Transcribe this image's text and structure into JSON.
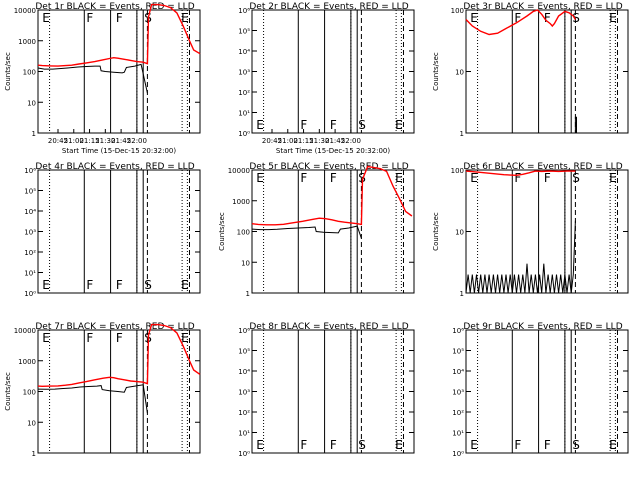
{
  "chart_data": [
    {
      "type": "line",
      "panel": "det-1r",
      "title": "Det 1r BLACK = Events, RED = LLD",
      "ylabel": "Counts/sec",
      "xlabel": "Start Time (15-Dec-15 20:32:00)",
      "scale": "log",
      "ylim": [
        1,
        10000
      ],
      "yticks": [
        "1",
        "10",
        "100",
        "1000",
        "10000"
      ],
      "xticks": [
        "20:45",
        "21:00",
        "21:15",
        "21:30",
        "21:45",
        "22:00"
      ],
      "markers": [
        "E",
        "F",
        "F",
        "S",
        "E"
      ],
      "series": [
        {
          "name": "LLD",
          "color": "#ff0000",
          "x": [
            36,
            40,
            48,
            55,
            62,
            68,
            75,
            82,
            90,
            98,
            104,
            108,
            112,
            118,
            124,
            130,
            136,
            140,
            141,
            144,
            150,
            156,
            162,
            168,
            174,
            180,
            184,
            190
          ],
          "y": [
            160,
            155,
            152,
            150,
            155,
            160,
            175,
            190,
            210,
            240,
            265,
            280,
            270,
            250,
            230,
            210,
            200,
            180,
            6000,
            15000,
            15000,
            14000,
            12000,
            8000,
            3000,
            1000,
            500,
            380
          ]
        },
        {
          "name": "Events",
          "color": "#000000",
          "x": [
            36,
            42,
            50,
            58,
            64,
            74,
            82,
            90,
            95,
            96,
            100,
            108,
            116,
            118,
            120,
            128,
            134,
            140
          ],
          "y": [
            130,
            120,
            120,
            125,
            130,
            140,
            145,
            150,
            150,
            105,
            100,
            95,
            90,
            95,
            135,
            150,
            170,
            20
          ]
        }
      ]
    },
    {
      "type": "line",
      "panel": "det-2r",
      "title": "Det 2r BLACK = Events, RED = LLD",
      "ylabel": "",
      "xlabel": "Start Time (15-Dec-15 20:32:00)",
      "scale": "log",
      "ylim": [
        1,
        1000000
      ],
      "yticks": [
        "10⁰",
        "10¹",
        "10²",
        "10³",
        "10⁴",
        "10⁵",
        "10⁶"
      ],
      "xticks": [
        "20:45",
        "21:00",
        "21:15",
        "21:30",
        "21:45",
        "22:00"
      ],
      "markers": [
        "E",
        "F",
        "F",
        "S",
        "E"
      ],
      "series": []
    },
    {
      "type": "line",
      "panel": "det-3r",
      "title": "Det 3r BLACK = Events, RED = LLD",
      "ylabel": "Counts/sec",
      "xlabel": "",
      "scale": "log",
      "ylim": [
        1,
        100
      ],
      "yticks": [
        "1",
        "10",
        "100"
      ],
      "xticks": [],
      "markers": [
        "E",
        "F",
        "F",
        "S",
        "E"
      ],
      "series": [
        {
          "name": "LLD",
          "color": "#ff0000",
          "x": [
            36,
            42,
            50,
            58,
            66,
            74,
            84,
            94,
            100,
            104,
            108,
            112,
            116,
            118,
            120,
            124,
            130,
            134,
            138,
            140
          ],
          "y": [
            70,
            55,
            45,
            40,
            42,
            50,
            62,
            80,
            95,
            100,
            85,
            68,
            60,
            55,
            60,
            80,
            95,
            90,
            80,
            70
          ]
        },
        {
          "name": "Events",
          "color": "#000000",
          "x": [
            140,
            140,
            141,
            141
          ],
          "y": [
            1,
            1.8,
            1.8,
            1
          ]
        }
      ]
    },
    {
      "type": "line",
      "panel": "det-4r",
      "title": "Det 4r BLACK = Events, RED = LLD",
      "ylabel": "",
      "xlabel": "",
      "scale": "log",
      "ylim": [
        1,
        1000000
      ],
      "yticks": [
        "10⁰",
        "10¹",
        "10²",
        "10³",
        "10⁴",
        "10⁵",
        "10⁶"
      ],
      "xticks": [],
      "markers": [
        "E",
        "F",
        "F",
        "S",
        "E"
      ],
      "series": []
    },
    {
      "type": "line",
      "panel": "det-5r",
      "title": "Det 5r BLACK = Events, RED = LLD",
      "ylabel": "Counts/sec",
      "xlabel": "",
      "scale": "log",
      "ylim": [
        1,
        10000
      ],
      "yticks": [
        "1",
        "10",
        "100",
        "1000",
        "10000"
      ],
      "xticks": [],
      "markers": [
        "E",
        "F",
        "F",
        "S",
        "E"
      ],
      "series": [
        {
          "name": "LLD",
          "color": "#ff0000",
          "x": [
            36,
            42,
            50,
            58,
            66,
            74,
            84,
            94,
            100,
            106,
            112,
            118,
            124,
            130,
            136,
            140,
            141,
            146,
            152,
            158,
            164,
            170,
            176,
            182,
            188
          ],
          "y": [
            180,
            170,
            165,
            165,
            172,
            190,
            215,
            250,
            270,
            260,
            240,
            215,
            200,
            190,
            180,
            170,
            5000,
            13000,
            12000,
            11000,
            9000,
            3000,
            1200,
            450,
            320
          ]
        },
        {
          "name": "Events",
          "color": "#000000",
          "x": [
            36,
            44,
            52,
            60,
            70,
            80,
            90,
            96,
            97,
            104,
            112,
            118,
            120,
            128,
            136,
            140
          ],
          "y": [
            120,
            115,
            115,
            118,
            125,
            130,
            135,
            140,
            100,
            95,
            92,
            90,
            120,
            130,
            150,
            60
          ]
        }
      ]
    },
    {
      "type": "line",
      "panel": "det-6r",
      "title": "Det 6r BLACK = Events, RED = LLD",
      "ylabel": "Counts/sec",
      "xlabel": "",
      "scale": "log",
      "ylim": [
        1,
        100
      ],
      "yticks": [
        "1",
        "10",
        "100"
      ],
      "xticks": [],
      "markers": [
        "E",
        "F",
        "F",
        "S",
        "E"
      ],
      "series": [
        {
          "name": "LLD",
          "color": "#ff0000",
          "x": [
            36,
            48,
            60,
            72,
            84,
            90,
            96,
            102,
            108,
            116,
            124,
            132,
            140
          ],
          "y": [
            96,
            92,
            88,
            84,
            82,
            85,
            90,
            96,
            95,
            96,
            95,
            96,
            96
          ]
        },
        {
          "name": "Events",
          "color": "#000000",
          "x": [
            36,
            38,
            40,
            42,
            44,
            46,
            48,
            50,
            52,
            54,
            56,
            58,
            60,
            62,
            64,
            66,
            68,
            70,
            72,
            74,
            76,
            78,
            80,
            82,
            84,
            86,
            88,
            90,
            92,
            94,
            96,
            98,
            100,
            102,
            104,
            106,
            108,
            110,
            112,
            114,
            116,
            118,
            120,
            122,
            124,
            126,
            128,
            130,
            132,
            134,
            136,
            138,
            140
          ],
          "y": [
            1,
            2,
            1,
            2,
            1,
            2,
            1,
            2,
            1,
            2,
            1,
            2,
            1,
            2,
            1,
            2,
            1,
            2,
            1,
            2,
            1,
            2,
            1,
            2,
            1,
            2,
            1,
            2,
            1,
            3,
            1,
            2,
            1,
            2,
            1,
            2,
            1,
            3,
            1,
            2,
            1,
            2,
            1,
            2,
            1,
            2,
            1,
            2,
            1,
            2,
            1,
            2,
            15
          ]
        }
      ]
    },
    {
      "type": "line",
      "panel": "det-7r",
      "title": "Det 7r BLACK = Events, RED = LLD",
      "ylabel": "Counts/sec",
      "xlabel": "",
      "scale": "log",
      "ylim": [
        1,
        10000
      ],
      "yticks": [
        "1",
        "10",
        "100",
        "1000",
        "10000"
      ],
      "xticks": [],
      "markers": [
        "E",
        "F",
        "F",
        "S",
        "E"
      ],
      "series": [
        {
          "name": "LLD",
          "color": "#ff0000",
          "x": [
            36,
            40,
            48,
            55,
            62,
            68,
            75,
            82,
            90,
            98,
            104,
            108,
            112,
            118,
            124,
            130,
            136,
            140,
            141,
            144,
            150,
            156,
            162,
            168,
            174,
            180,
            184,
            190
          ],
          "y": [
            150,
            148,
            150,
            152,
            160,
            170,
            190,
            210,
            240,
            270,
            290,
            280,
            260,
            240,
            220,
            210,
            200,
            180,
            7000,
            15000,
            15000,
            14000,
            12000,
            8000,
            3000,
            1000,
            500,
            360
          ]
        },
        {
          "name": "Events",
          "color": "#000000",
          "x": [
            36,
            44,
            52,
            60,
            68,
            76,
            84,
            92,
            96,
            97,
            104,
            112,
            118,
            120,
            128,
            136,
            140
          ],
          "y": [
            120,
            118,
            120,
            125,
            130,
            140,
            145,
            150,
            155,
            115,
            105,
            100,
            95,
            135,
            150,
            165,
            20
          ]
        }
      ]
    },
    {
      "type": "line",
      "panel": "det-8r",
      "title": "Det 8r BLACK = Events, RED = LLD",
      "ylabel": "",
      "xlabel": "",
      "scale": "log",
      "ylim": [
        1,
        1000000
      ],
      "yticks": [
        "10⁰",
        "10¹",
        "10²",
        "10³",
        "10⁴",
        "10⁵",
        "10⁶"
      ],
      "xticks": [],
      "markers": [
        "E",
        "F",
        "F",
        "S",
        "E"
      ],
      "series": []
    },
    {
      "type": "line",
      "panel": "det-9r",
      "title": "Det 9r BLACK = Events, RED = LLD",
      "ylabel": "",
      "xlabel": "",
      "scale": "log",
      "ylim": [
        1,
        1000000
      ],
      "yticks": [
        "10⁰",
        "10¹",
        "10²",
        "10³",
        "10⁴",
        "10⁵",
        "10⁶"
      ],
      "xticks": [],
      "markers": [
        "E",
        "F",
        "F",
        "S",
        "E"
      ],
      "series": []
    }
  ]
}
